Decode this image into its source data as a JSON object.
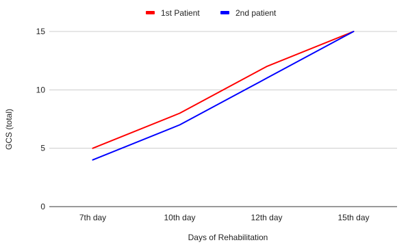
{
  "chart_data": {
    "type": "line",
    "categories": [
      "7th day",
      "10th day",
      "12th day",
      "15th day"
    ],
    "series": [
      {
        "name": "1st Patient",
        "values": [
          5,
          8,
          12,
          15
        ],
        "color": "#ff0000"
      },
      {
        "name": "2nd patient",
        "values": [
          4,
          7,
          11,
          15
        ],
        "color": "#0000ff"
      }
    ],
    "title": "",
    "xlabel": "Days of Rehabilitation",
    "ylabel": "GCS (total)",
    "ylim": [
      0,
      15
    ],
    "yticks": [
      0,
      5,
      10,
      15
    ],
    "grid": true,
    "legend": "top-center"
  }
}
